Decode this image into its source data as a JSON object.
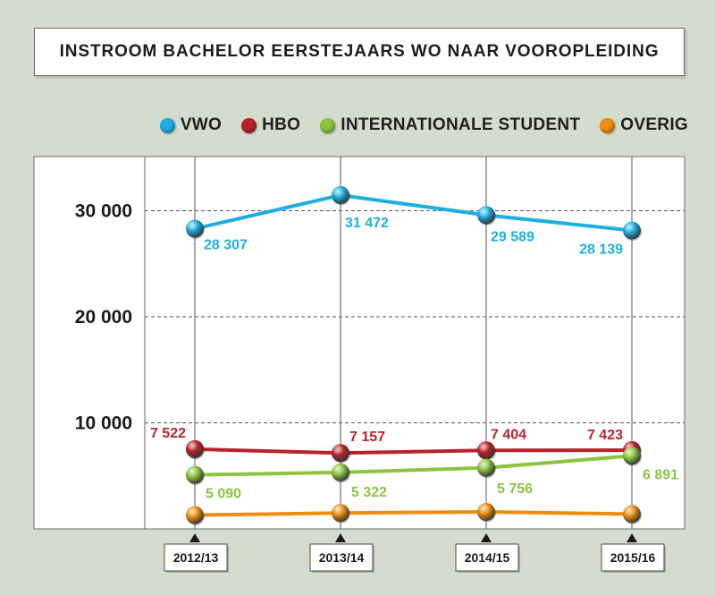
{
  "title": "INSTROOM BACHELOR EERSTEJAARS WO NAAR VOOROPLEIDING",
  "legend": [
    {
      "label": "VWO",
      "color": "#1faee0"
    },
    {
      "label": "HBO",
      "color": "#b8232b"
    },
    {
      "label": "INTERNATIONALE STUDENT",
      "color": "#8cc33f"
    },
    {
      "label": "OVERIG",
      "color": "#ec8d12"
    }
  ],
  "chart_data": {
    "type": "line",
    "title": "INSTROOM BACHELOR EERSTEJAARS WO NAAR VOOROPLEIDING",
    "categories": [
      "2012/13",
      "2013/14",
      "2014/15",
      "2015/16"
    ],
    "yticks": [
      10000,
      20000,
      30000
    ],
    "ytick_labels": [
      "10 000",
      "20 000",
      "30 000"
    ],
    "ylim": [
      0,
      35000
    ],
    "grid": true,
    "legend_position": "top-right",
    "series": [
      {
        "name": "VWO",
        "color": "#1faee0",
        "values": [
          28307,
          31472,
          29589,
          28139
        ],
        "labels": [
          "28 307",
          "31 472",
          "29 589",
          "28 139"
        ]
      },
      {
        "name": "HBO",
        "color": "#b8232b",
        "values": [
          7522,
          7157,
          7404,
          7423
        ],
        "labels": [
          "7 522",
          "7 157",
          "7 404",
          "7 423"
        ]
      },
      {
        "name": "INTERNATIONALE STUDENT",
        "color": "#8cc33f",
        "values": [
          5090,
          5322,
          5756,
          6891
        ],
        "labels": [
          "5 090",
          "5 322",
          "5 756",
          "6 891"
        ]
      },
      {
        "name": "OVERIG",
        "color": "#ec8d12",
        "values": [
          1300,
          1500,
          1600,
          1400
        ],
        "labels": []
      }
    ]
  }
}
